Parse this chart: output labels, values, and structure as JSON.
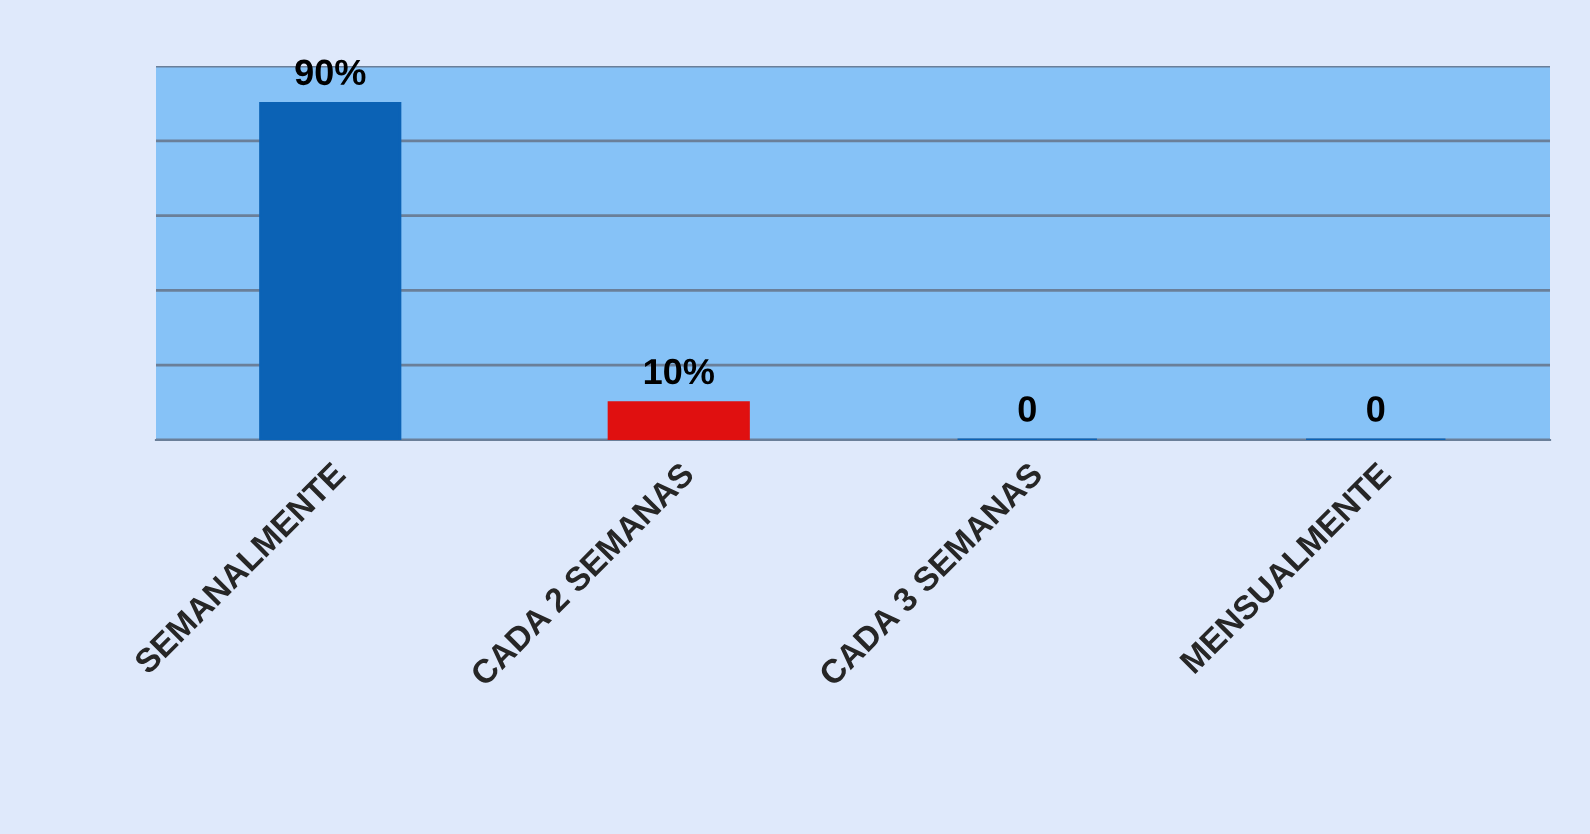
{
  "chart_data": {
    "type": "bar",
    "categories": [
      "SEMANALMENTE",
      "CADA 2 SEMANAS",
      "CADA 3 SEMANAS",
      "MENSUALMENTE"
    ],
    "values": [
      90,
      10,
      0,
      0
    ],
    "colors": [
      "#0b62b5",
      "#e01010",
      "#0b62b5",
      "#0b62b5"
    ],
    "value_labels": [
      "90%",
      "10%",
      "0",
      "0"
    ],
    "ylim": [
      0,
      100
    ],
    "yticks": [
      {
        "value": 0,
        "label": null
      },
      {
        "value": 20,
        "label": null
      },
      {
        "value": 40,
        "label": null
      },
      {
        "value": 60,
        "label": null
      },
      {
        "value": 80,
        "label": null
      },
      {
        "value": 100,
        "label": null
      }
    ],
    "grid": "y",
    "tick_labels": "x"
  }
}
